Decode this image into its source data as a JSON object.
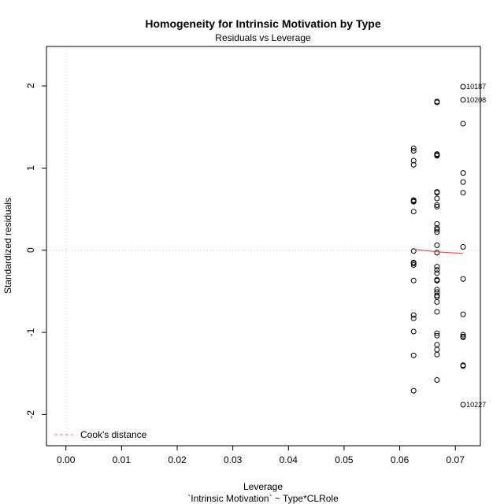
{
  "chart_data": {
    "type": "scatter",
    "title": "Homogeneity for Intrinsic Motivation by Type",
    "subtitle": "Residuals vs Leverage",
    "xlabel": "Leverage",
    "xlabel2": "`Intrinsic Motivation` ~ Type*CLRole",
    "ylabel": "Standardized residuals",
    "xlim": [
      -0.0035,
      0.0745
    ],
    "ylim": [
      -2.38,
      2.48
    ],
    "xticks": [
      "0.00",
      "0.01",
      "0.02",
      "0.03",
      "0.04",
      "0.05",
      "0.06",
      "0.07"
    ],
    "yticks": [
      "-2",
      "-1",
      "0",
      "1",
      "2"
    ],
    "grid": false,
    "legend": {
      "position": "bottom-left",
      "entries": [
        {
          "label": "Cook's distance",
          "color": "#ff6b6b",
          "style": "dashed"
        }
      ]
    },
    "colors": {
      "points": "#000000",
      "smooth": "#ff2a2a",
      "reference": "#c8c8c8"
    },
    "series": [
      {
        "x": [
          0.0625,
          0.0625,
          0.0625,
          0.0625,
          0.0625,
          0.0625,
          0.0625,
          0.0625,
          0.0625,
          0.0625,
          0.0625,
          0.0625,
          0.0625,
          0.0625,
          0.0625,
          0.0625,
          0.0625,
          0.0625,
          0.0667,
          0.0667,
          0.0667,
          0.0667,
          0.0667,
          0.0667,
          0.0667,
          0.0667,
          0.0667,
          0.0667,
          0.0667,
          0.0667,
          0.0667,
          0.0667,
          0.0667,
          0.0667,
          0.0667,
          0.0667,
          0.0667,
          0.0667,
          0.0667,
          0.0667,
          0.0667,
          0.0667,
          0.0667,
          0.0667,
          0.0667,
          0.0667,
          0.0667,
          0.0667,
          0.0667,
          0.0667,
          0.0667,
          0.0667,
          0.0714,
          0.0714,
          0.0714,
          0.0714,
          0.0714,
          0.0714,
          0.0714,
          0.0714,
          0.0714,
          0.0714,
          0.0714,
          0.0714,
          0.0714,
          0.0714,
          0.0714
        ],
        "y": [
          1.24,
          1.21,
          1.09,
          1.04,
          0.61,
          0.59,
          0.47,
          -0.01,
          -0.15,
          -0.18,
          -0.37,
          -0.79,
          -0.83,
          -0.99,
          -1.28,
          -1.71,
          -0.16,
          0.6,
          1.81,
          1.8,
          1.17,
          1.16,
          0.71,
          0.63,
          0.55,
          0.53,
          0.32,
          0.27,
          0.06,
          -0.2,
          -0.24,
          -0.28,
          -0.36,
          -0.37,
          -0.48,
          -0.51,
          -0.57,
          -0.63,
          -0.75,
          -1.01,
          -1.04,
          -1.15,
          -1.21,
          -1.27,
          -1.58,
          0.22,
          -0.55,
          1.15,
          -0.37,
          -0.03,
          0.7,
          0.25,
          1.99,
          1.83,
          1.54,
          0.94,
          0.83,
          0.7,
          0.04,
          -0.35,
          -0.78,
          -1.03,
          -1.06,
          -1.4,
          -1.41,
          -1.88,
          -1.05
        ]
      }
    ],
    "smooth_line": {
      "x": [
        0.0625,
        0.0667,
        0.0714
      ],
      "y": [
        0.01,
        -0.02,
        -0.04
      ]
    },
    "point_labels": [
      {
        "text": "10187",
        "x": 0.0714,
        "y": 1.99
      },
      {
        "text": "10208",
        "x": 0.0714,
        "y": 1.83
      },
      {
        "text": "10227",
        "x": 0.0714,
        "y": -1.88
      }
    ]
  }
}
